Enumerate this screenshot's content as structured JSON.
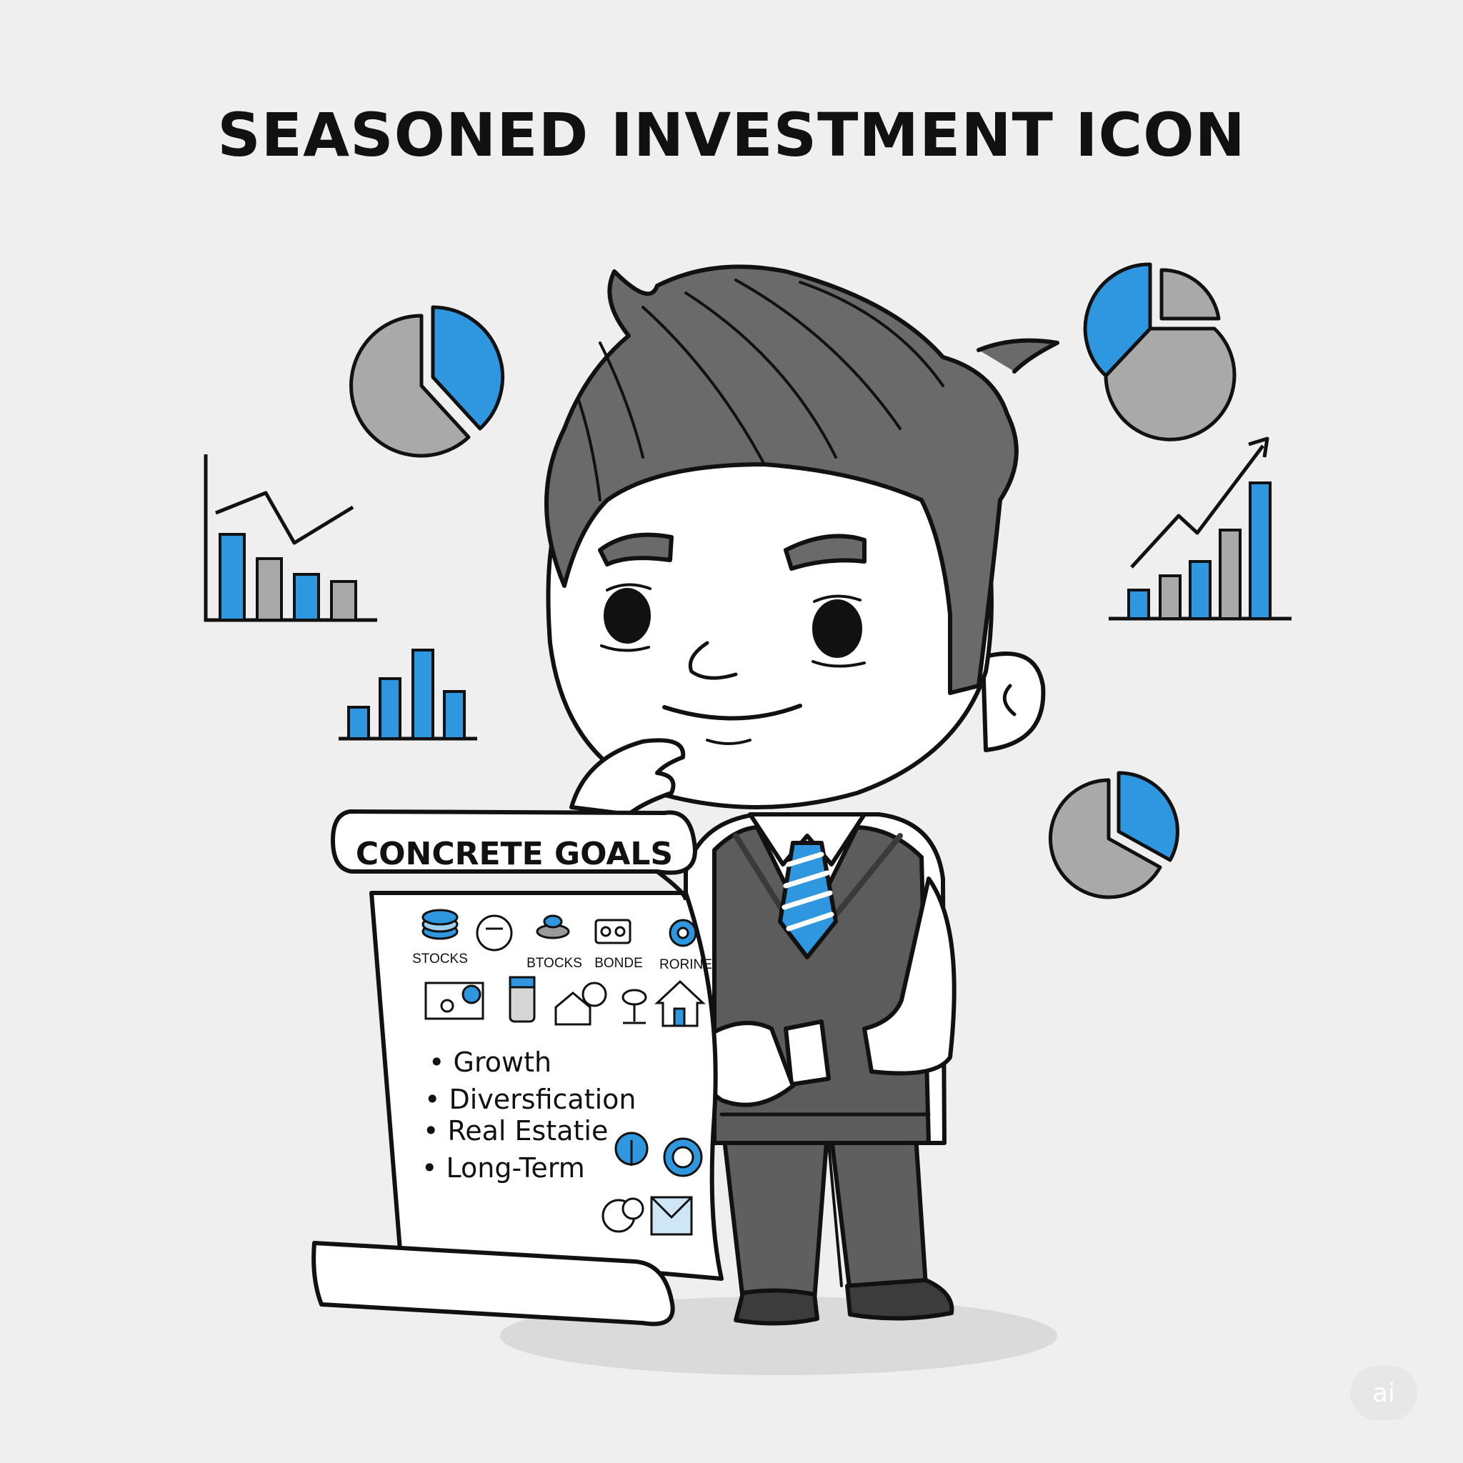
{
  "title": "SEASONED INVESTMENT ICON",
  "colors": {
    "accent": "#2f97e0",
    "background": "#efefef",
    "line": "#111111",
    "gray": "#a9a9a9"
  },
  "scroll": {
    "heading": "CONCRETE GOALS",
    "icon_labels": [
      "STOCKS",
      "BTOCKS",
      "BONDE",
      "RORINE"
    ],
    "bullets": [
      "Growth",
      "Diversfication",
      "Real Estatie",
      "Long-Term"
    ]
  },
  "badge": "ai"
}
